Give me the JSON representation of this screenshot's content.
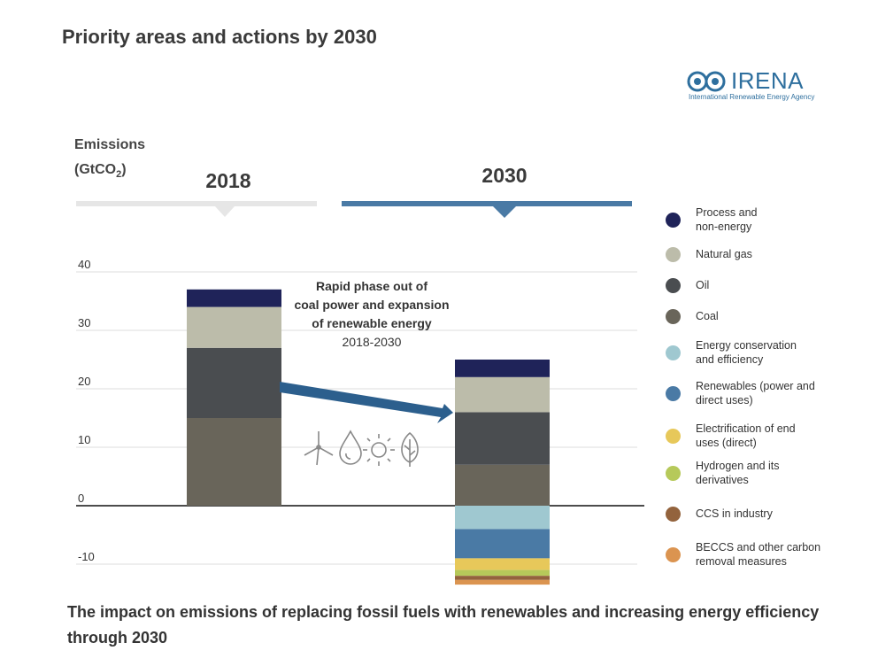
{
  "title": "Priority areas and actions by 2030",
  "logo": {
    "word": "IRENA",
    "subtitle": "International Renewable Energy Agency"
  },
  "colors": {
    "process": "#1f2359",
    "gas": "#bcbcaa",
    "oil": "#4a4d50",
    "coal": "#69655a",
    "efficiency": "#9fc8d0",
    "renewables": "#4a7aa5",
    "electrification": "#e7c85a",
    "hydrogen": "#b6c95a",
    "ccs": "#93633d",
    "beccs": "#db9450",
    "arrow": "#2c5f8d",
    "header2030": "#4a7aa5",
    "header2018": "#e6e6e6"
  },
  "chart_data": {
    "type": "bar",
    "stacked": true,
    "ylabel": "Emissions",
    "ylabel_unit": "(GtCO",
    "ylabel_sub": "2",
    "ylabel_close": ")",
    "yticks": [
      40,
      30,
      20,
      10,
      0,
      -10
    ],
    "ylim": [
      -14,
      45
    ],
    "categories": [
      "2018",
      "2030"
    ],
    "series": [
      {
        "name": "Coal",
        "values": [
          15,
          7
        ],
        "color": "#69655a"
      },
      {
        "name": "Oil",
        "values": [
          12,
          9
        ],
        "color": "#4a4d50"
      },
      {
        "name": "Natural gas",
        "values": [
          7,
          6
        ],
        "color": "#bcbcaa"
      },
      {
        "name": "Process and non-energy",
        "values": [
          3,
          3
        ],
        "color": "#1f2359"
      },
      {
        "name": "Energy conservation and efficiency",
        "values": [
          0,
          -4
        ],
        "color": "#9fc8d0"
      },
      {
        "name": "Renewables (power and direct uses)",
        "values": [
          0,
          -5
        ],
        "color": "#4a7aa5"
      },
      {
        "name": "Electrification of end uses (direct)",
        "values": [
          0,
          -2
        ],
        "color": "#e7c85a"
      },
      {
        "name": "Hydrogen and its derivatives",
        "values": [
          0,
          -1
        ],
        "color": "#b6c95a"
      },
      {
        "name": "CCS in industry",
        "values": [
          0,
          -0.7
        ],
        "color": "#93633d"
      },
      {
        "name": "BECCS and other carbon removal measures",
        "values": [
          0,
          -0.8
        ],
        "color": "#db9450"
      }
    ],
    "legend": [
      {
        "label": "Process and\nnon-energy",
        "color": "#1f2359"
      },
      {
        "label": "Natural gas",
        "color": "#bcbcaa"
      },
      {
        "label": "Oil",
        "color": "#4a4d50"
      },
      {
        "label": "Coal",
        "color": "#69655a"
      },
      {
        "label": "Energy conservation\nand efficiency",
        "color": "#9fc8d0"
      },
      {
        "label": "Renewables (power and\ndirect uses)",
        "color": "#4a7aa5"
      },
      {
        "label": "Electrification of end\nuses (direct)",
        "color": "#e7c85a"
      },
      {
        "label": "Hydrogen and its\nderivatives",
        "color": "#b6c95a"
      },
      {
        "label": "CCS in industry",
        "color": "#93633d"
      },
      {
        "label": "BECCS and other carbon\nremoval measures",
        "color": "#db9450"
      }
    ],
    "annotation": {
      "line1": "Rapid phase out of",
      "line2": "coal power and expansion",
      "line3": "of renewable energy",
      "line4": "2018-2030"
    }
  },
  "icons": [
    "wind-turbine-icon",
    "water-drop-icon",
    "sun-icon",
    "leaf-icon"
  ],
  "footer": "The impact on emissions of replacing fossil fuels with renewables and increasing energy efficiency through 2030"
}
